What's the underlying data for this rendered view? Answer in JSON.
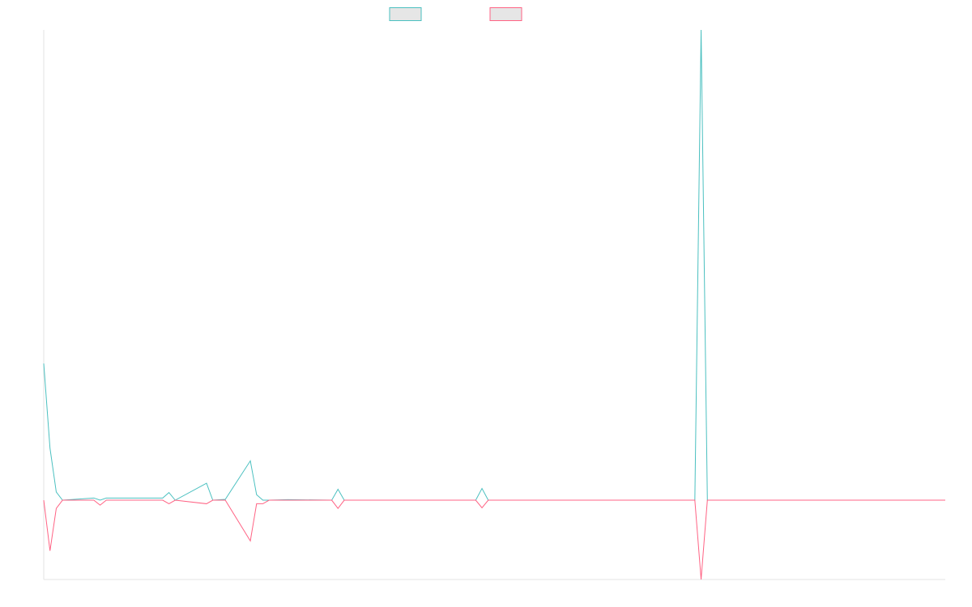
{
  "chart_data": {
    "type": "line",
    "title": "",
    "xlabel": "",
    "ylabel": "",
    "grid": false,
    "legend": {
      "position": "top-center"
    },
    "x": [
      0,
      1,
      2,
      3,
      8,
      9,
      10,
      19,
      20,
      21,
      26,
      27,
      29,
      33,
      34,
      35,
      36,
      39,
      46,
      47,
      48,
      69,
      70,
      71,
      104,
      105,
      106,
      144
    ],
    "ylim": [
      -29,
      172
    ],
    "series": [
      {
        "color": "#4bc0c0",
        "values": [
          50,
          19,
          3,
          0,
          0.8,
          0,
          0.8,
          0.8,
          2.8,
          0,
          6.2,
          0,
          0.3,
          14.4,
          2,
          0,
          0,
          0.2,
          0,
          4,
          0,
          0,
          4.3,
          0,
          0,
          172,
          0,
          0
        ]
      },
      {
        "color": "#ff6384",
        "values": [
          0,
          -18.5,
          -3,
          0,
          0,
          -1.8,
          0,
          0,
          -1.3,
          0,
          -1.3,
          0,
          0,
          -14.9,
          -1.3,
          -1.3,
          0,
          0,
          0,
          -3,
          0,
          0,
          -2.8,
          0,
          0,
          -29,
          0,
          0
        ]
      }
    ]
  }
}
